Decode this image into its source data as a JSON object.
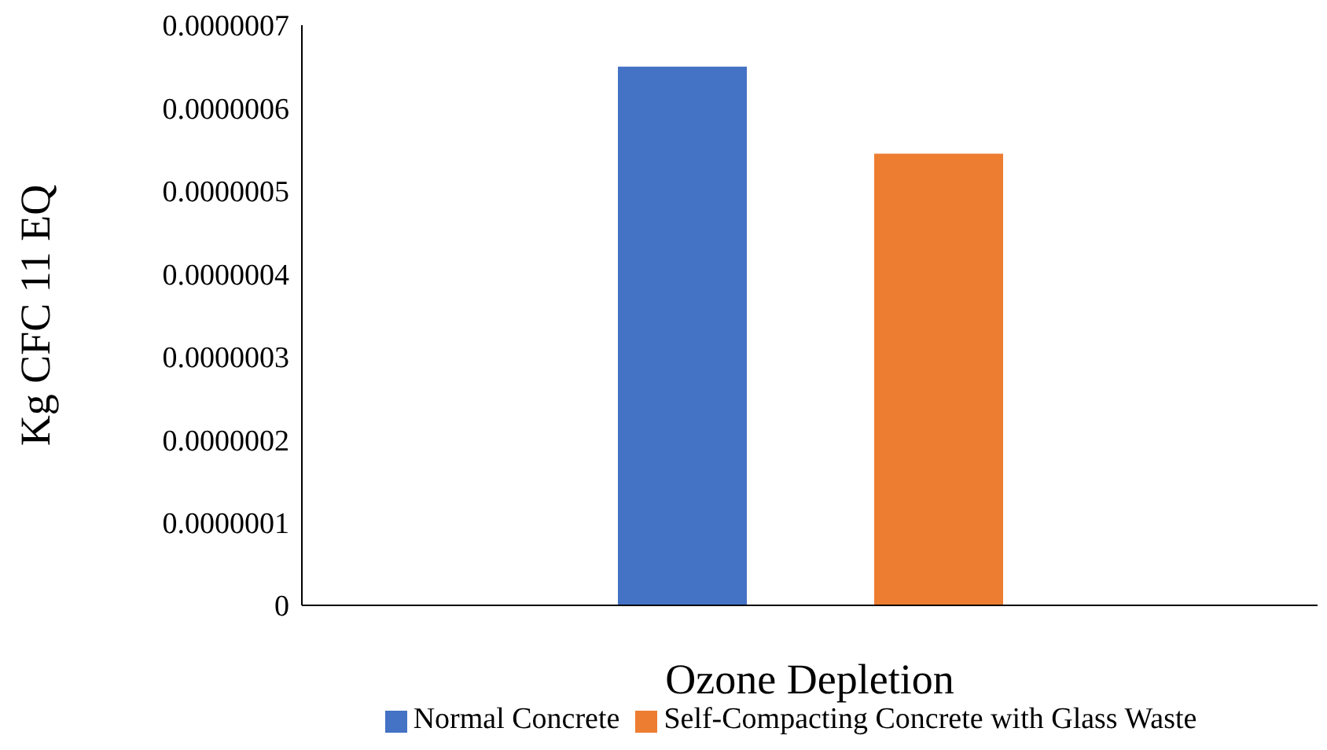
{
  "chart_data": {
    "type": "bar",
    "xlabel": "Ozone Depletion",
    "ylabel": "Kg CFC 11 EQ",
    "categories": [
      null
    ],
    "series": [
      {
        "name": "Normal Concrete",
        "color": "#4472c4",
        "values": [
          6.5e-07
        ]
      },
      {
        "name": "Self-Compacting Concrete with Glass Waste",
        "color": "#ed7d31",
        "values": [
          5.45e-07
        ]
      }
    ],
    "ylim": [
      0,
      7e-07
    ],
    "yticks": [
      {
        "value": 0,
        "label": "0"
      },
      {
        "value": 1e-07,
        "label": "0.0000001"
      },
      {
        "value": 2e-07,
        "label": "0.0000002"
      },
      {
        "value": 3e-07,
        "label": "0.0000003"
      },
      {
        "value": 4e-07,
        "label": "0.0000004"
      },
      {
        "value": 5e-07,
        "label": "0.0000005"
      },
      {
        "value": 6e-07,
        "label": "0.0000006"
      },
      {
        "value": 7e-07,
        "label": "0.0000007"
      }
    ],
    "grid": false,
    "legend": "bottom"
  }
}
